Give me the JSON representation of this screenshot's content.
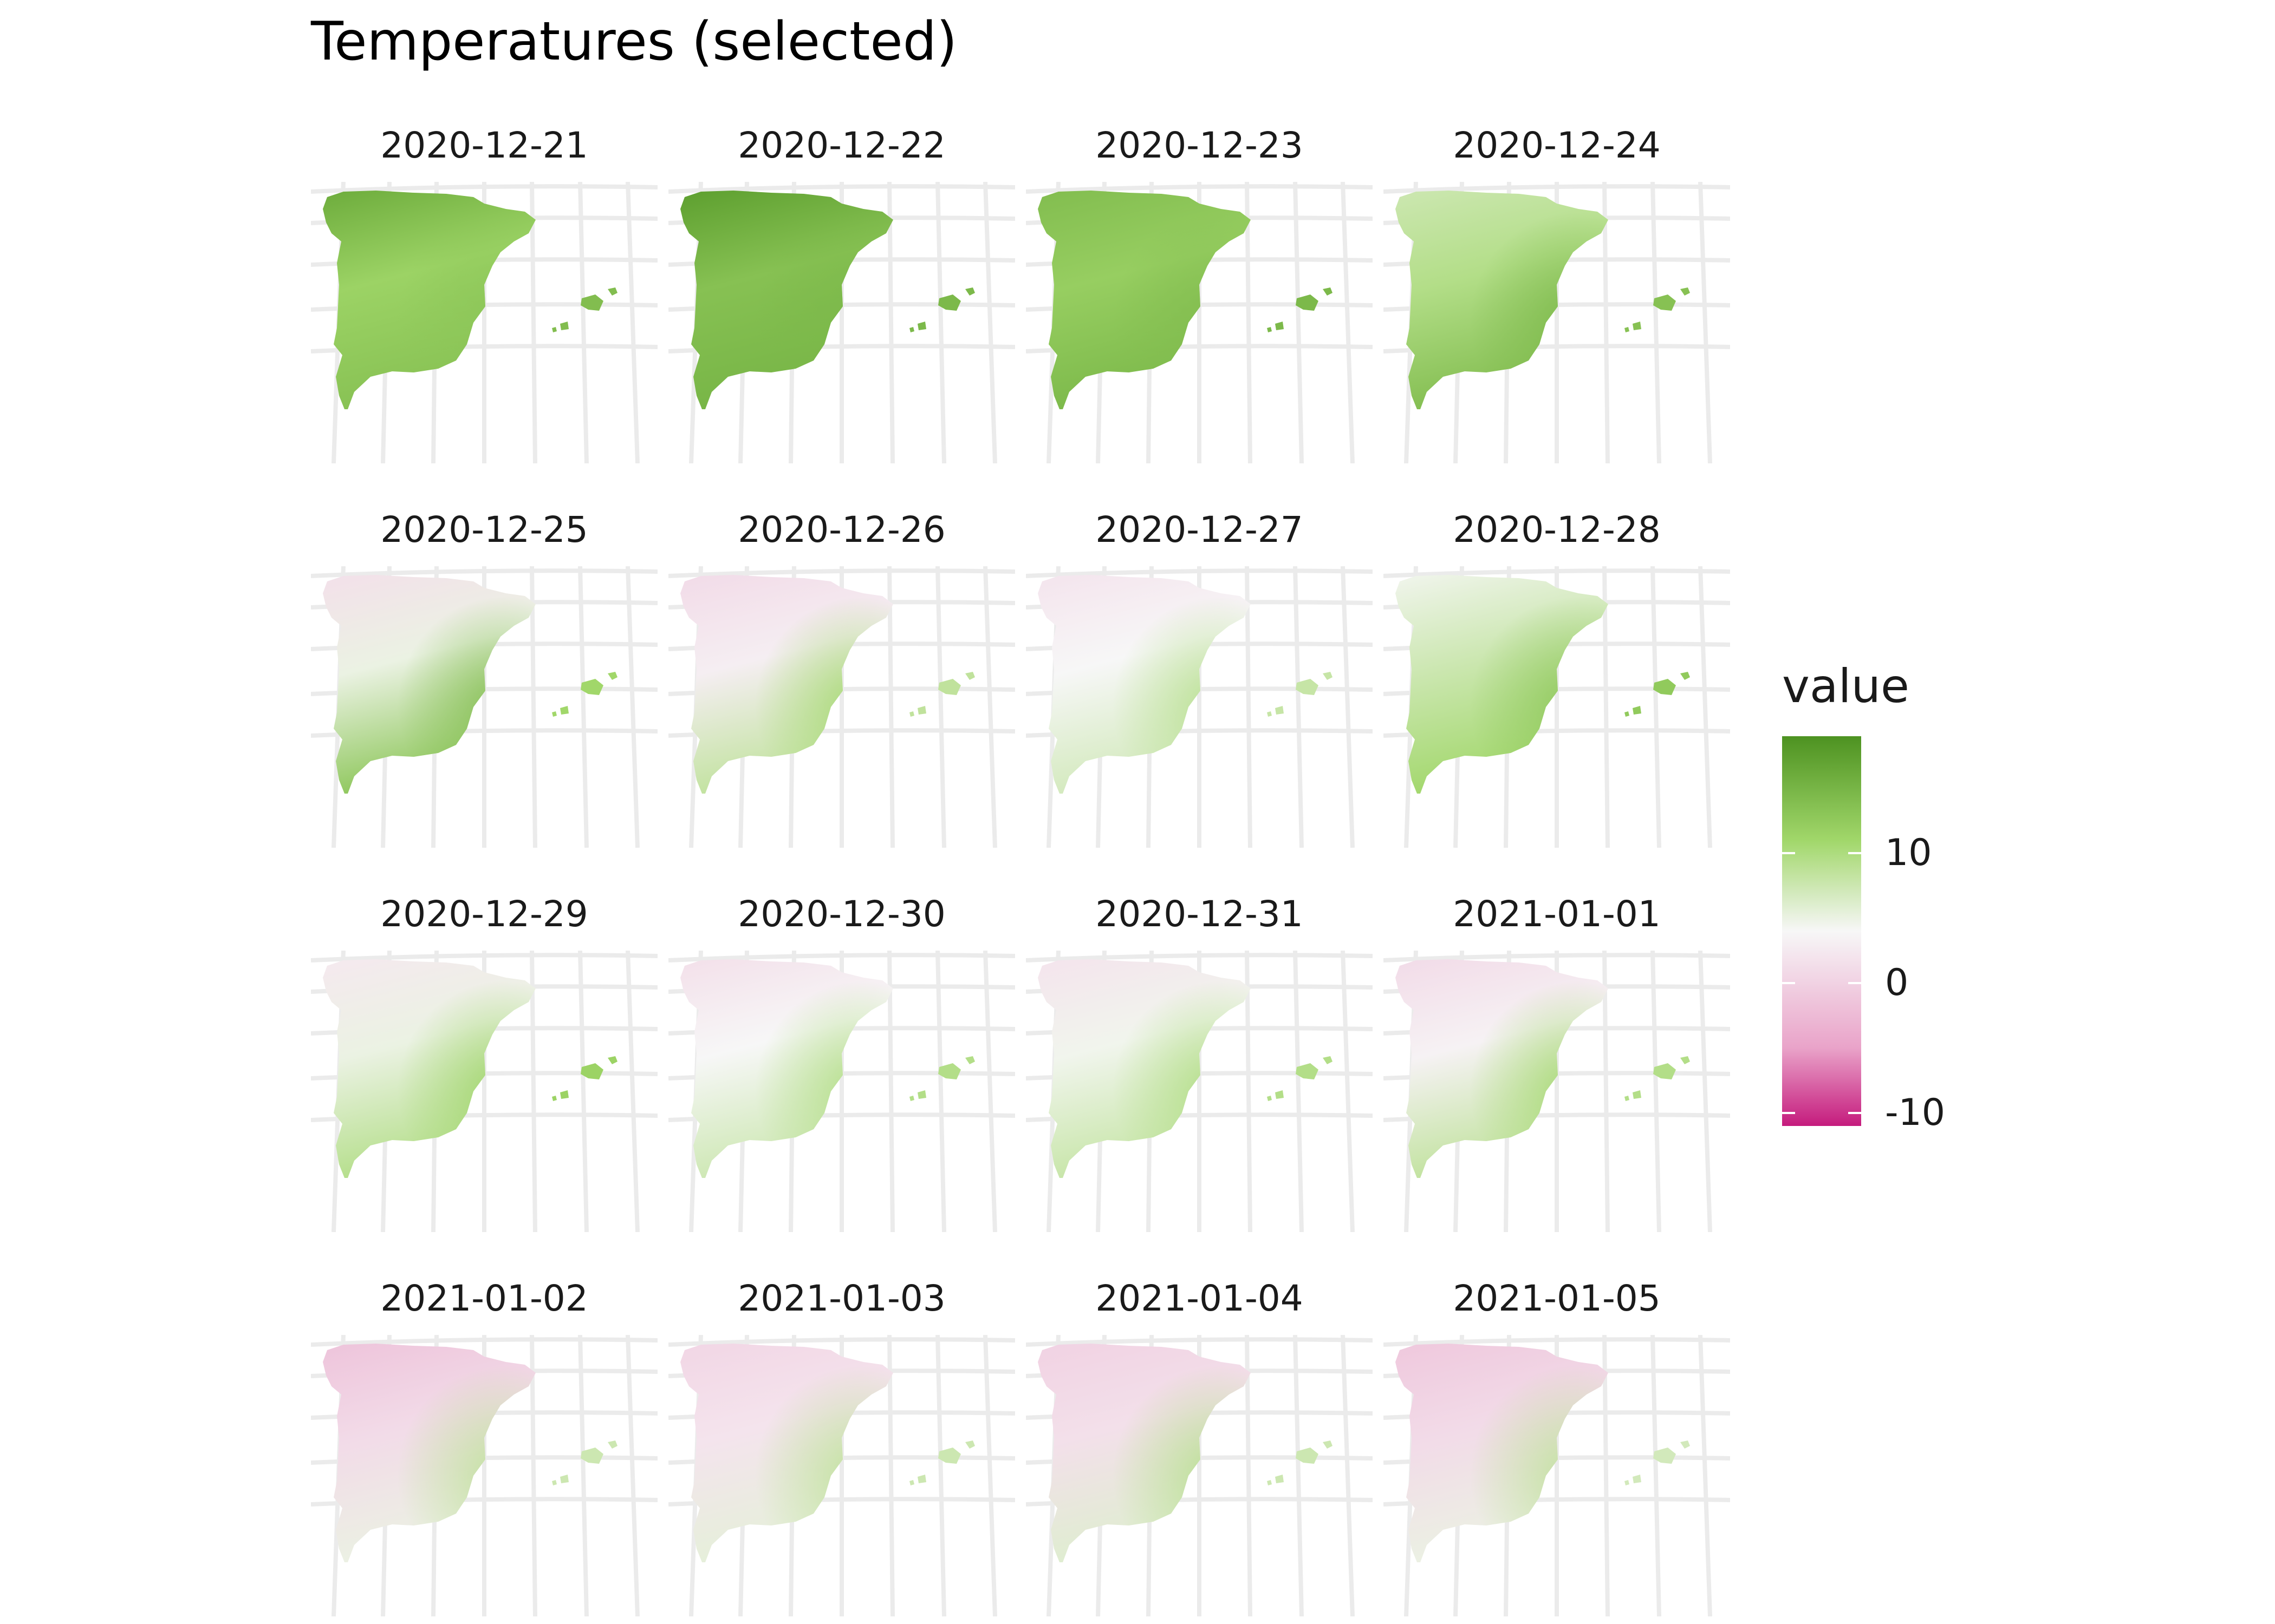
{
  "title": "Temperatures (selected)",
  "panels": [
    {
      "label": "2020-12-21",
      "north": 16.0,
      "center": 11.5,
      "south": 13.5,
      "balearic": 14.0,
      "coast": 13.0
    },
    {
      "label": "2020-12-22",
      "north": 17.5,
      "center": 13.5,
      "south": 15.0,
      "balearic": 14.5,
      "coast": 14.5
    },
    {
      "label": "2020-12-23",
      "north": 14.0,
      "center": 12.0,
      "south": 14.5,
      "balearic": 14.5,
      "coast": 14.0
    },
    {
      "label": "2020-12-24",
      "north": 7.5,
      "center": 9.5,
      "south": 14.0,
      "balearic": 13.5,
      "coast": 14.5
    },
    {
      "label": "2020-12-25",
      "north": 1.5,
      "center": 5.0,
      "south": 13.0,
      "balearic": 11.0,
      "coast": 14.0
    },
    {
      "label": "2020-12-26",
      "north": 1.0,
      "center": 3.0,
      "south": 8.5,
      "balearic": 8.5,
      "coast": 11.0
    },
    {
      "label": "2020-12-27",
      "north": 2.0,
      "center": 4.0,
      "south": 7.0,
      "balearic": 8.0,
      "coast": 9.5
    },
    {
      "label": "2020-12-28",
      "north": 4.5,
      "center": 7.5,
      "south": 11.0,
      "balearic": 12.5,
      "coast": 13.0
    },
    {
      "label": "2020-12-29",
      "north": 2.5,
      "center": 5.0,
      "south": 9.5,
      "balearic": 11.5,
      "coast": 11.5
    },
    {
      "label": "2020-12-30",
      "north": 1.5,
      "center": 4.0,
      "south": 7.5,
      "balearic": 9.5,
      "coast": 10.0
    },
    {
      "label": "2020-12-31",
      "north": 2.0,
      "center": 4.5,
      "south": 8.0,
      "balearic": 9.5,
      "coast": 10.0
    },
    {
      "label": "2021-01-01",
      "north": 1.0,
      "center": 3.5,
      "south": 8.5,
      "balearic": 9.5,
      "coast": 11.0
    },
    {
      "label": "2021-01-02",
      "north": -1.5,
      "center": 1.0,
      "south": 5.0,
      "balearic": 7.5,
      "coast": 9.0
    },
    {
      "label": "2021-01-03",
      "north": 0.5,
      "center": 2.0,
      "south": 5.5,
      "balearic": 7.5,
      "coast": 9.0
    },
    {
      "label": "2021-01-04",
      "north": 0.0,
      "center": 1.5,
      "south": 6.0,
      "balearic": 7.5,
      "coast": 9.5
    },
    {
      "label": "2021-01-05",
      "north": -1.0,
      "center": 1.0,
      "south": 5.0,
      "balearic": 7.0,
      "coast": 9.0
    }
  ],
  "legend": {
    "title": "value",
    "ticks": [
      {
        "value": 10,
        "label": "10"
      },
      {
        "value": 0,
        "label": "0"
      },
      {
        "value": -10,
        "label": "-10"
      }
    ],
    "range": [
      -11,
      19
    ],
    "colors": {
      "low": "#c51b7d",
      "low_mid": "#e9a3c9",
      "mid": "#f7f7f7",
      "high_mid": "#a1d76a",
      "high": "#4d9221"
    }
  },
  "graticule_color": "#ebebeb"
}
